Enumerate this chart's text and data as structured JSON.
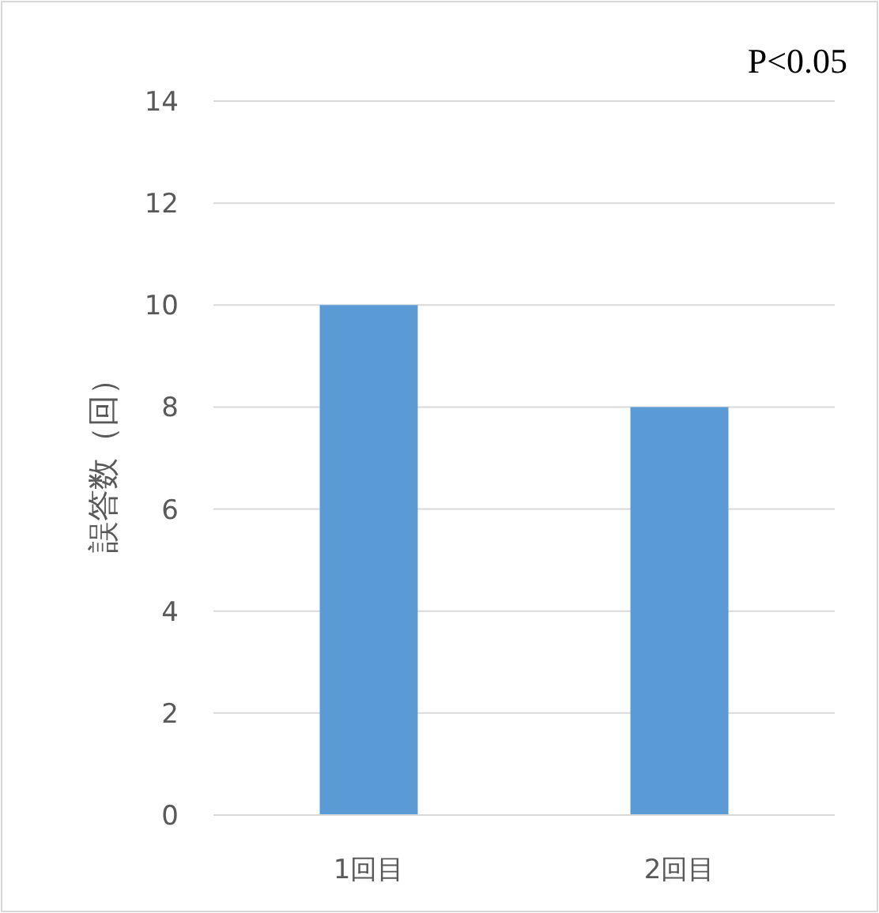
{
  "chart_data": {
    "type": "bar",
    "categories": [
      "1回目",
      "2回目"
    ],
    "values": [
      10,
      8
    ],
    "color": "#5b9bd5",
    "ylabel": "誤答数（回）",
    "ylim": [
      0,
      14
    ],
    "yticks": [
      0,
      2,
      4,
      6,
      8,
      10,
      12,
      14
    ],
    "grid": "y",
    "annotations": [
      "P<0.05"
    ]
  }
}
